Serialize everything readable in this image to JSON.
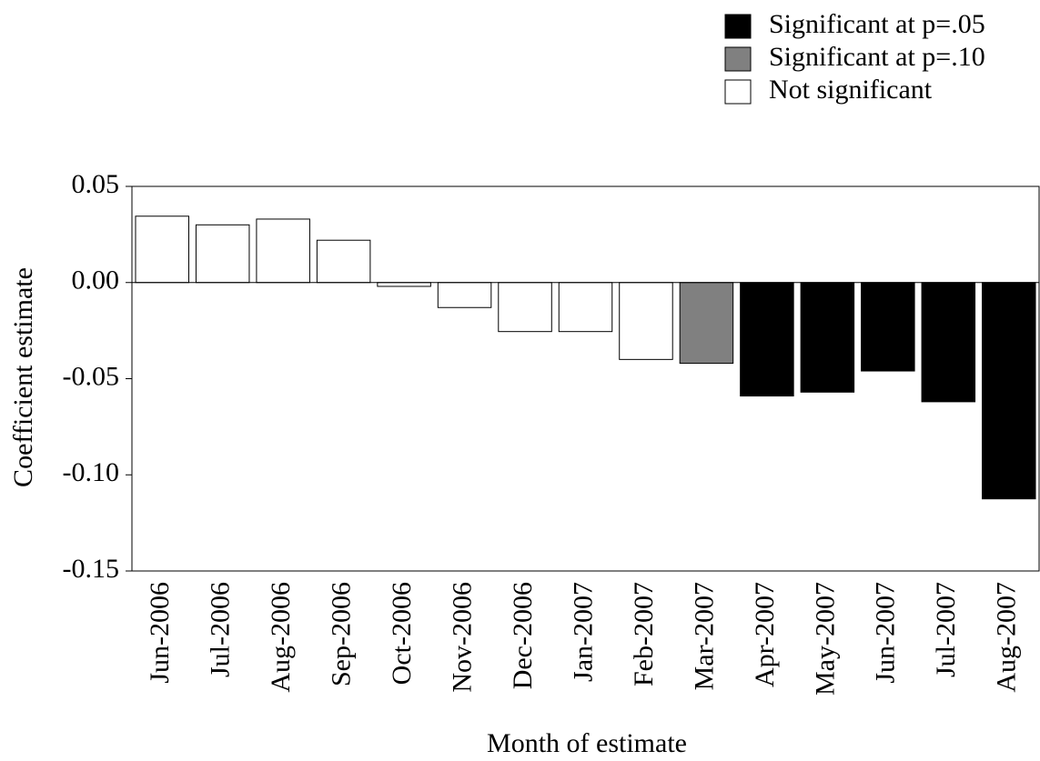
{
  "chart_data": {
    "type": "bar",
    "xlabel": "Month of estimate",
    "ylabel": "Coefficient estimate",
    "categories": [
      "Jun-2006",
      "Jul-2006",
      "Aug-2006",
      "Sep-2006",
      "Oct-2006",
      "Nov-2006",
      "Dec-2006",
      "Jan-2007",
      "Feb-2007",
      "Mar-2007",
      "Apr-2007",
      "May-2007",
      "Jun-2007",
      "Jul-2007",
      "Aug-2007"
    ],
    "series": [
      {
        "name": "Significant at p=.05",
        "color": "#000000",
        "values": [
          null,
          null,
          null,
          null,
          null,
          null,
          null,
          null,
          null,
          null,
          -0.059,
          -0.057,
          -0.046,
          -0.062,
          -0.1125
        ]
      },
      {
        "name": "Significant at p=.10",
        "color": "#808080",
        "values": [
          null,
          null,
          null,
          null,
          null,
          null,
          null,
          null,
          null,
          -0.042,
          null,
          null,
          null,
          null,
          null
        ]
      },
      {
        "name": "Not significant",
        "color": "#ffffff",
        "values": [
          0.0345,
          0.03,
          0.033,
          0.022,
          -0.002,
          -0.013,
          -0.0255,
          -0.0255,
          -0.04,
          null,
          null,
          null,
          null,
          null,
          null
        ]
      }
    ],
    "ylim": [
      -0.15,
      0.05
    ],
    "yticks": [
      0.05,
      {
        "value": 0,
        "label": "0.00"
      },
      -0.05,
      {
        "value": -0.1,
        "label": "-0.10"
      },
      -0.15
    ],
    "legend": "top-right"
  }
}
